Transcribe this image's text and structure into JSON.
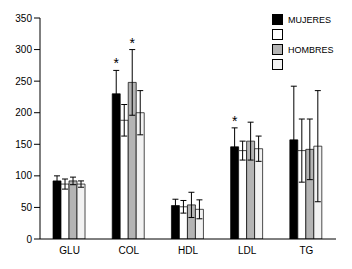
{
  "chart_data": {
    "type": "bar",
    "categories": [
      "GLU",
      "COL",
      "HDL",
      "LDL",
      "TG"
    ],
    "series": [
      {
        "name": "MUJERES",
        "color": "#000000",
        "values": [
          92,
          230,
          53,
          146,
          157
        ],
        "errors": [
          8,
          37,
          10,
          30,
          85
        ]
      },
      {
        "name": null,
        "color": "#ffffff",
        "values": [
          87,
          188,
          51,
          140,
          140
        ],
        "errors": [
          8,
          25,
          10,
          15,
          50
        ]
      },
      {
        "name": "HOMBRES",
        "color": "#b4b4b4",
        "values": [
          92,
          248,
          54,
          155,
          142
        ],
        "errors": [
          6,
          52,
          20,
          30,
          48
        ]
      },
      {
        "name": null,
        "color": "#f2f2f2",
        "values": [
          87,
          200,
          47,
          143,
          147
        ],
        "errors": [
          5,
          35,
          15,
          20,
          88
        ]
      }
    ],
    "ylim": [
      0,
      350
    ],
    "yticks": [
      0,
      50,
      100,
      150,
      200,
      250,
      300,
      350
    ],
    "grid": false,
    "legend": "top-right",
    "annotations": [
      {
        "text": "*",
        "category": "COL",
        "series": 0
      },
      {
        "text": "*",
        "category": "COL",
        "series": 2
      },
      {
        "text": "*",
        "category": "LDL",
        "series": 0
      }
    ]
  }
}
